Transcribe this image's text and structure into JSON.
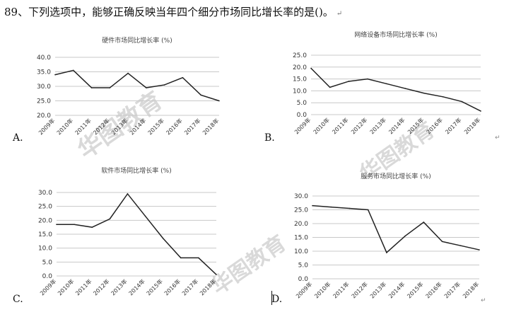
{
  "question": {
    "text": "89、下列选项中，能够正确反映当年四个细分市场同比增长率的是()。",
    "return_mark": "↵"
  },
  "option_letters": [
    "A.",
    "B.",
    "C.",
    "D."
  ],
  "return_mark": "↵",
  "watermark": {
    "text": "华图教育"
  },
  "chart_data": [
    {
      "type": "line",
      "title": "硬件市场同比增长率 (%)",
      "categories": [
        "2009年",
        "2010年",
        "2011年",
        "2012年",
        "2013年",
        "2014年",
        "2015年",
        "2016年",
        "2017年",
        "2018年"
      ],
      "series": [
        {
          "values": [
            34,
            35.5,
            29.5,
            29.5,
            34.5,
            29.5,
            30.5,
            33,
            27,
            25
          ]
        }
      ],
      "yticks": [
        20.0,
        25.0,
        30.0,
        35.0,
        40.0
      ],
      "ylim": [
        20,
        40
      ],
      "grid": true
    },
    {
      "type": "line",
      "title": "网络设备市场同比增长率 (%)",
      "categories": [
        "2009年",
        "2010年",
        "2011年",
        "2012年",
        "2013年",
        "2014年",
        "2015年",
        "2016年",
        "2017年",
        "2018年"
      ],
      "series": [
        {
          "values": [
            19.5,
            11.5,
            14,
            15,
            13,
            11,
            9,
            7.5,
            5.5,
            1.5
          ]
        }
      ],
      "yticks": [
        0.0,
        5.0,
        10.0,
        15.0,
        20.0,
        25.0
      ],
      "ylim": [
        0,
        25
      ],
      "grid": true
    },
    {
      "type": "line",
      "title": "软件市场同比增长率 (%)",
      "categories": [
        "2009年",
        "2010年",
        "2011年",
        "2012年",
        "2013年",
        "2014年",
        "2015年",
        "2016年",
        "2017年",
        "2018年"
      ],
      "series": [
        {
          "values": [
            18.5,
            18.5,
            17.5,
            20.5,
            29.5,
            21.5,
            13.5,
            6.5,
            6.5,
            0.5
          ]
        }
      ],
      "yticks": [
        0.0,
        5.0,
        10.0,
        15.0,
        20.0,
        25.0,
        30.0
      ],
      "ylim": [
        0,
        30
      ],
      "grid": true
    },
    {
      "type": "line",
      "title": "服务市场同比增长率 (%)",
      "categories": [
        "2009年",
        "2010年",
        "2011年",
        "2012年",
        "2013年",
        "2014年",
        "2015年",
        "2016年",
        "2017年",
        "2018年"
      ],
      "series": [
        {
          "values": [
            26.5,
            26,
            25.5,
            25,
            9.5,
            15.5,
            20.5,
            13.5,
            12,
            10.5
          ]
        }
      ],
      "yticks": [
        0.0,
        5.0,
        10.0,
        15.0,
        20.0,
        25.0,
        30.0
      ],
      "ylim": [
        0,
        30
      ],
      "grid": true
    }
  ]
}
